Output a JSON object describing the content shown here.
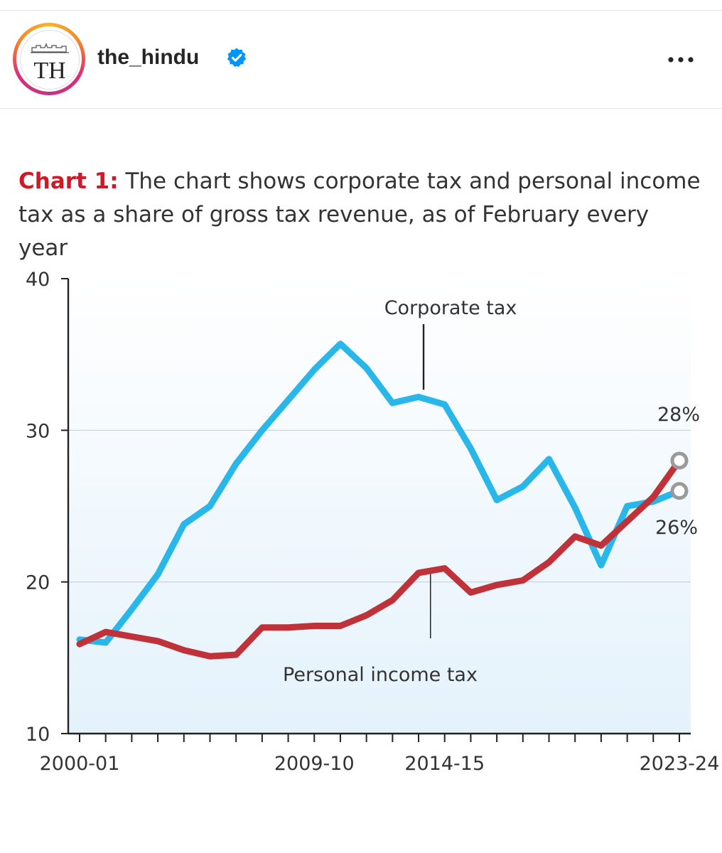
{
  "post": {
    "username": "the_hindu",
    "avatar_text": "TH",
    "verified_icon": "verified-badge-icon",
    "more_icon": "more-options-icon"
  },
  "chart_title": {
    "lead": "Chart 1:",
    "text": "The chart shows corporate tax and personal income tax as a share of gross tax revenue, as of February every year"
  },
  "colors": {
    "corporate": "#29b7ea",
    "personal": "#c0323a",
    "accent": "#cc1a26",
    "verified": "#0095f6"
  },
  "chart_data": {
    "type": "line",
    "title": "Chart 1: The chart shows corporate tax and personal income tax as a share of gross tax revenue, as of February every year",
    "xlabel": "",
    "ylabel": "",
    "ylim": [
      10,
      40
    ],
    "yticks": [
      10,
      20,
      30,
      40
    ],
    "grid": true,
    "x": [
      "2000-01",
      "2001-02",
      "2002-03",
      "2003-04",
      "2004-05",
      "2005-06",
      "2006-07",
      "2007-08",
      "2008-09",
      "2009-10",
      "2010-11",
      "2011-12",
      "2012-13",
      "2013-14",
      "2014-15",
      "2015-16",
      "2016-17",
      "2017-18",
      "2018-19",
      "2019-20",
      "2020-21",
      "2021-22",
      "2022-23",
      "2023-24"
    ],
    "xtick_labels": [
      "2000-01",
      "2009-10",
      "2014-15",
      "2023-24"
    ],
    "series": [
      {
        "name": "Corporate tax",
        "values": [
          16.2,
          16.0,
          18.2,
          20.5,
          23.8,
          25.0,
          27.8,
          30.0,
          32.0,
          34.0,
          35.7,
          34.1,
          31.8,
          32.2,
          31.7,
          28.8,
          25.4,
          26.3,
          28.1,
          24.9,
          21.1,
          25.0,
          25.3,
          26.0
        ]
      },
      {
        "name": "Personal income tax",
        "values": [
          15.9,
          16.7,
          16.4,
          16.1,
          15.5,
          15.1,
          15.2,
          17.0,
          17.0,
          17.1,
          17.1,
          17.8,
          18.8,
          20.6,
          20.9,
          19.3,
          19.8,
          20.1,
          21.3,
          23.0,
          22.4,
          24.0,
          25.6,
          28.0
        ]
      }
    ],
    "annotations": [
      {
        "text": "Corporate tax",
        "series": "Corporate tax",
        "x": "2013-14",
        "value": 32.2
      },
      {
        "text": "Personal income tax",
        "series": "Personal income tax",
        "x": "2014-15",
        "value": 20.9
      },
      {
        "text": "28%",
        "series": "Personal income tax",
        "x": "2023-24",
        "value": 28.0
      },
      {
        "text": "26%",
        "series": "Corporate tax",
        "x": "2023-24",
        "value": 26.0
      }
    ]
  }
}
